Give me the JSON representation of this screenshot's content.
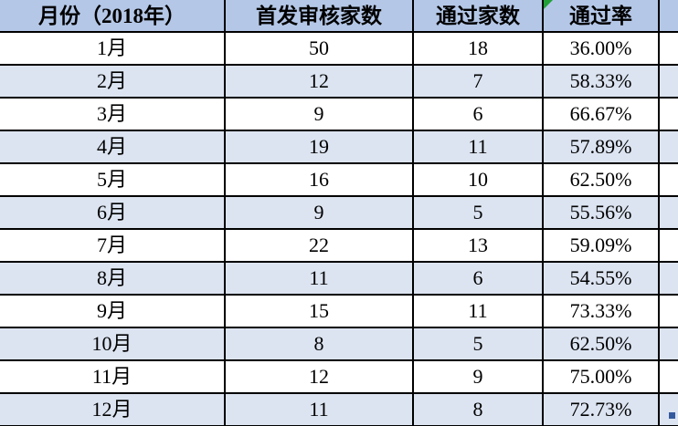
{
  "table": {
    "columns": [
      {
        "label": "月份（2018年）"
      },
      {
        "label": "首发审核家数"
      },
      {
        "label": "通过家数"
      },
      {
        "label": "通过率"
      }
    ],
    "rows": [
      {
        "month": "1月",
        "reviewed": "50",
        "passed": "18",
        "rate": "36.00%"
      },
      {
        "month": "2月",
        "reviewed": "12",
        "passed": "7",
        "rate": "58.33%"
      },
      {
        "month": "3月",
        "reviewed": "9",
        "passed": "6",
        "rate": "66.67%"
      },
      {
        "month": "4月",
        "reviewed": "19",
        "passed": "11",
        "rate": "57.89%"
      },
      {
        "month": "5月",
        "reviewed": "16",
        "passed": "10",
        "rate": "62.50%"
      },
      {
        "month": "6月",
        "reviewed": "9",
        "passed": "5",
        "rate": "55.56%"
      },
      {
        "month": "7月",
        "reviewed": "22",
        "passed": "13",
        "rate": "59.09%"
      },
      {
        "month": "8月",
        "reviewed": "11",
        "passed": "6",
        "rate": "54.55%"
      },
      {
        "month": "9月",
        "reviewed": "15",
        "passed": "11",
        "rate": "73.33%"
      },
      {
        "month": "10月",
        "reviewed": "8",
        "passed": "5",
        "rate": "62.50%"
      },
      {
        "month": "11月",
        "reviewed": "12",
        "passed": "9",
        "rate": "75.00%"
      },
      {
        "month": "12月",
        "reviewed": "11",
        "passed": "8",
        "rate": "72.73%"
      }
    ]
  },
  "icons": {
    "error_flag": "green-corner-triangle",
    "fill_handle": "blue-selection-square"
  },
  "colors": {
    "header_bg": "#b4c7e7",
    "stripe_bg": "#dce4f1",
    "row_bg": "#ffffff",
    "border": "#000000",
    "flag_green": "#21a038",
    "fill_handle_blue": "#35599f",
    "text": "#000000"
  }
}
